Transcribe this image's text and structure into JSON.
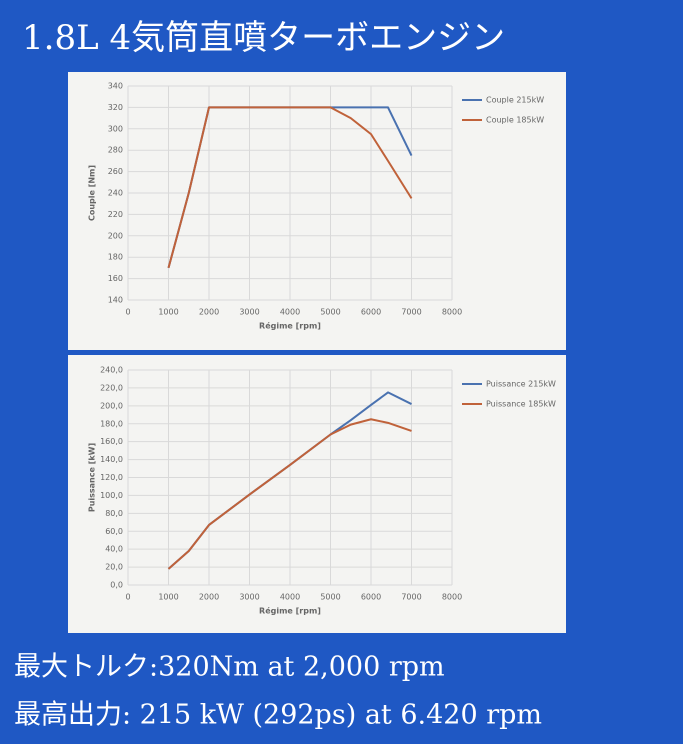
{
  "title": "1.8L 4気筒直噴ターボエンジン",
  "specs": [
    "最大トルク:320Nm at 2,000 rpm",
    "最高出力: 215 kW (292ps) at 6.420 rpm"
  ],
  "chart_data": [
    {
      "type": "line",
      "x_label": "Régime [rpm]",
      "y_label": "Couple [Nm]",
      "x": [
        1000,
        1500,
        2000,
        5000,
        5500,
        6000,
        6420,
        7000
      ],
      "series": [
        {
          "name": "Couple 215kW",
          "color": "#4a72b0",
          "values": [
            170,
            240,
            320,
            320,
            320,
            320,
            320,
            275
          ]
        },
        {
          "name": "Couple 185kW",
          "color": "#c0623a",
          "values": [
            170,
            240,
            320,
            320,
            310,
            295,
            270,
            235
          ]
        }
      ],
      "xlim": [
        0,
        8000
      ],
      "xticks": [
        0,
        1000,
        2000,
        3000,
        4000,
        5000,
        6000,
        7000,
        8000
      ],
      "ylim": [
        140,
        340
      ],
      "yticks": [
        140,
        160,
        180,
        200,
        220,
        240,
        260,
        280,
        300,
        320,
        340
      ],
      "grid": true,
      "legend": "right"
    },
    {
      "type": "line",
      "x_label": "Régime [rpm]",
      "y_label": "Puissance [kW]",
      "x": [
        1000,
        1500,
        2000,
        3000,
        4000,
        5000,
        5500,
        6000,
        6420,
        7000
      ],
      "series": [
        {
          "name": "Puissance 215kW",
          "color": "#4a72b0",
          "values": [
            18,
            38,
            67,
            101,
            134,
            168,
            184,
            201,
            215,
            202
          ]
        },
        {
          "name": "Puissance 185kW",
          "color": "#c0623a",
          "values": [
            18,
            38,
            67,
            101,
            134,
            168,
            179,
            185,
            181,
            172
          ]
        }
      ],
      "xlim": [
        0,
        8000
      ],
      "xticks": [
        0,
        1000,
        2000,
        3000,
        4000,
        5000,
        6000,
        7000,
        8000
      ],
      "ylim": [
        0,
        240
      ],
      "yticks": [
        {
          "value": 0,
          "label": "0,0"
        },
        {
          "value": 20,
          "label": "20,0"
        },
        {
          "value": 40,
          "label": "40,0"
        },
        {
          "value": 60,
          "label": "60,0"
        },
        {
          "value": 80,
          "label": "80,0"
        },
        {
          "value": 100,
          "label": "100,0"
        },
        {
          "value": 120,
          "label": "120,0"
        },
        {
          "value": 140,
          "label": "140,0"
        },
        {
          "value": 160,
          "label": "160,0"
        },
        {
          "value": 180,
          "label": "180,0"
        },
        {
          "value": 200,
          "label": "200,0"
        },
        {
          "value": 220,
          "label": "220,0"
        },
        {
          "value": 240,
          "label": "240,0"
        }
      ],
      "grid": true,
      "legend": "right"
    }
  ]
}
